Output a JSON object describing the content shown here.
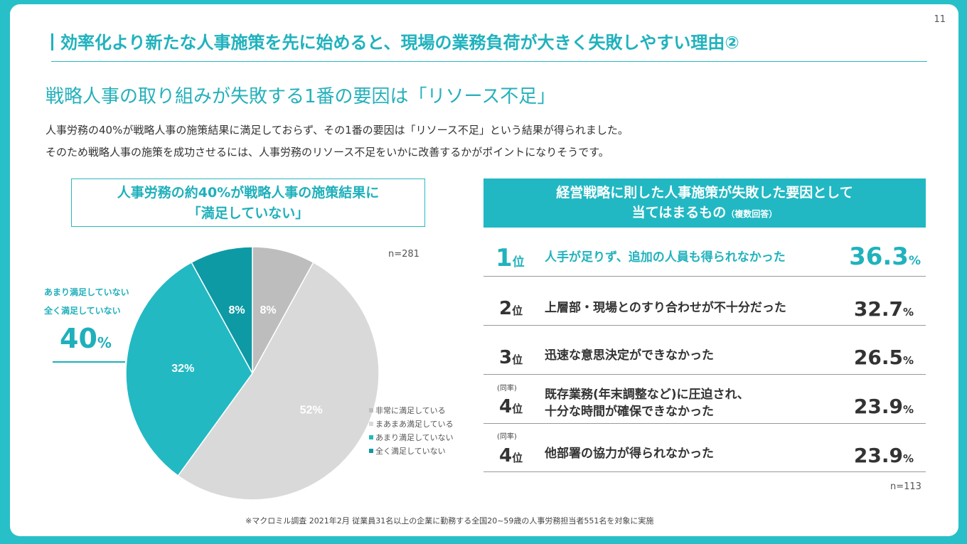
{
  "page_number": "11",
  "title": "効率化より新たな人事施策を先に始めると、現場の業務負荷が大きく失敗しやすい理由②",
  "subtitle": "戦略人事の取り組みが失敗する1番の要因は「リソース不足」",
  "intro": [
    "人事労務の40%が戦略人事の施策結果に満足しておらず、その1番の要因は「リソース不足」という結果が得られました。",
    "そのため戦略人事の施策を成功させるには、人事労務のリソース不足をいかに改善するかがポイントになりそうです。"
  ],
  "left_box": {
    "line1": "人事労務の約40%が戦略人事の施策結果に",
    "line2": "「満足していない」"
  },
  "right_box": {
    "line1": "経営戦略に則した人事施策が失敗した要因として",
    "line2": "当てはまるもの",
    "line2_small": "（複数回答）"
  },
  "callout": {
    "line1": "あまり満足していない",
    "line2": "全く満足していない",
    "value": "40",
    "unit": "%"
  },
  "colors": {
    "accent": "#20b2bd",
    "pie_light": "#bdbdbd",
    "pie_lighter": "#d9d9d9",
    "pie_teal": "#22b9c3",
    "pie_dark": "#0e9aa4"
  },
  "chart_data": [
    {
      "type": "pie",
      "n_label": "n=281",
      "categories": [
        "非常に満足している",
        "まあまあ満足している",
        "あまり満足していない",
        "全く満足していない"
      ],
      "values": [
        8,
        52,
        32,
        8
      ],
      "value_labels": [
        "8%",
        "52%",
        "32%",
        "8%"
      ],
      "colors": [
        "#bdbdbd",
        "#d9d9d9",
        "#22b9c3",
        "#0e9aa4"
      ],
      "legend_position": "bottom-right"
    },
    {
      "type": "table",
      "n_label": "n=113",
      "rank_suffix": "位",
      "tie_label": "(同率)",
      "rows": [
        {
          "rank": "1",
          "tie": false,
          "reason": [
            "人手が足りず、追加の人員も得られなかった"
          ],
          "value": "36.3",
          "unit": "%"
        },
        {
          "rank": "2",
          "tie": false,
          "reason": [
            "上層部・現場とのすり合わせが不十分だった"
          ],
          "value": "32.7",
          "unit": "%"
        },
        {
          "rank": "3",
          "tie": false,
          "reason": [
            "迅速な意思決定ができなかった"
          ],
          "value": "26.5",
          "unit": "%"
        },
        {
          "rank": "4",
          "tie": true,
          "reason": [
            "既存業務(年末調整など)に圧迫され、",
            "十分な時間が確保できなかった"
          ],
          "value": "23.9",
          "unit": "%"
        },
        {
          "rank": "4",
          "tie": true,
          "reason": [
            "他部署の協力が得られなかった"
          ],
          "value": "23.9",
          "unit": "%"
        }
      ]
    }
  ],
  "footnote": "※マクロミル調査 2021年2月 従業員31名以上の企業に勤務する全国20~59歳の人事労務担当者551名を対象に実施"
}
